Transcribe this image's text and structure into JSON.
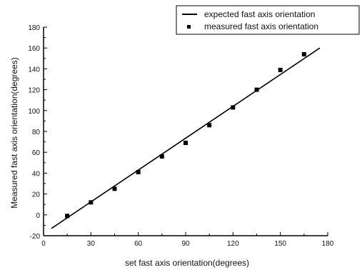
{
  "chart_data": {
    "type": "scatter",
    "title": "",
    "xlabel": "set fast axis orientation(degrees)",
    "ylabel": "Measured fast axis orientation(degrees)",
    "xlim": [
      0,
      180
    ],
    "ylim": [
      -20,
      180
    ],
    "xticks": [
      "0",
      "30",
      "60",
      "90",
      "120",
      "150",
      "180"
    ],
    "yticks": [
      "-20",
      "0",
      "20",
      "40",
      "60",
      "80",
      "100",
      "120",
      "140",
      "160",
      "180"
    ],
    "grid": false,
    "legend_position": "top-right",
    "series": [
      {
        "name": "expected fast axis orientation",
        "kind": "line",
        "color": "#000000",
        "x": [
          5,
          175
        ],
        "y": [
          -13,
          160
        ]
      },
      {
        "name": "measured fast axis orientation",
        "kind": "marker",
        "marker": "square",
        "color": "#000000",
        "x": [
          15,
          30,
          45,
          60,
          75,
          90,
          105,
          120,
          135,
          150,
          165
        ],
        "y": [
          -1,
          12,
          25,
          41,
          56,
          69,
          86,
          103,
          120,
          139,
          154
        ]
      }
    ]
  }
}
